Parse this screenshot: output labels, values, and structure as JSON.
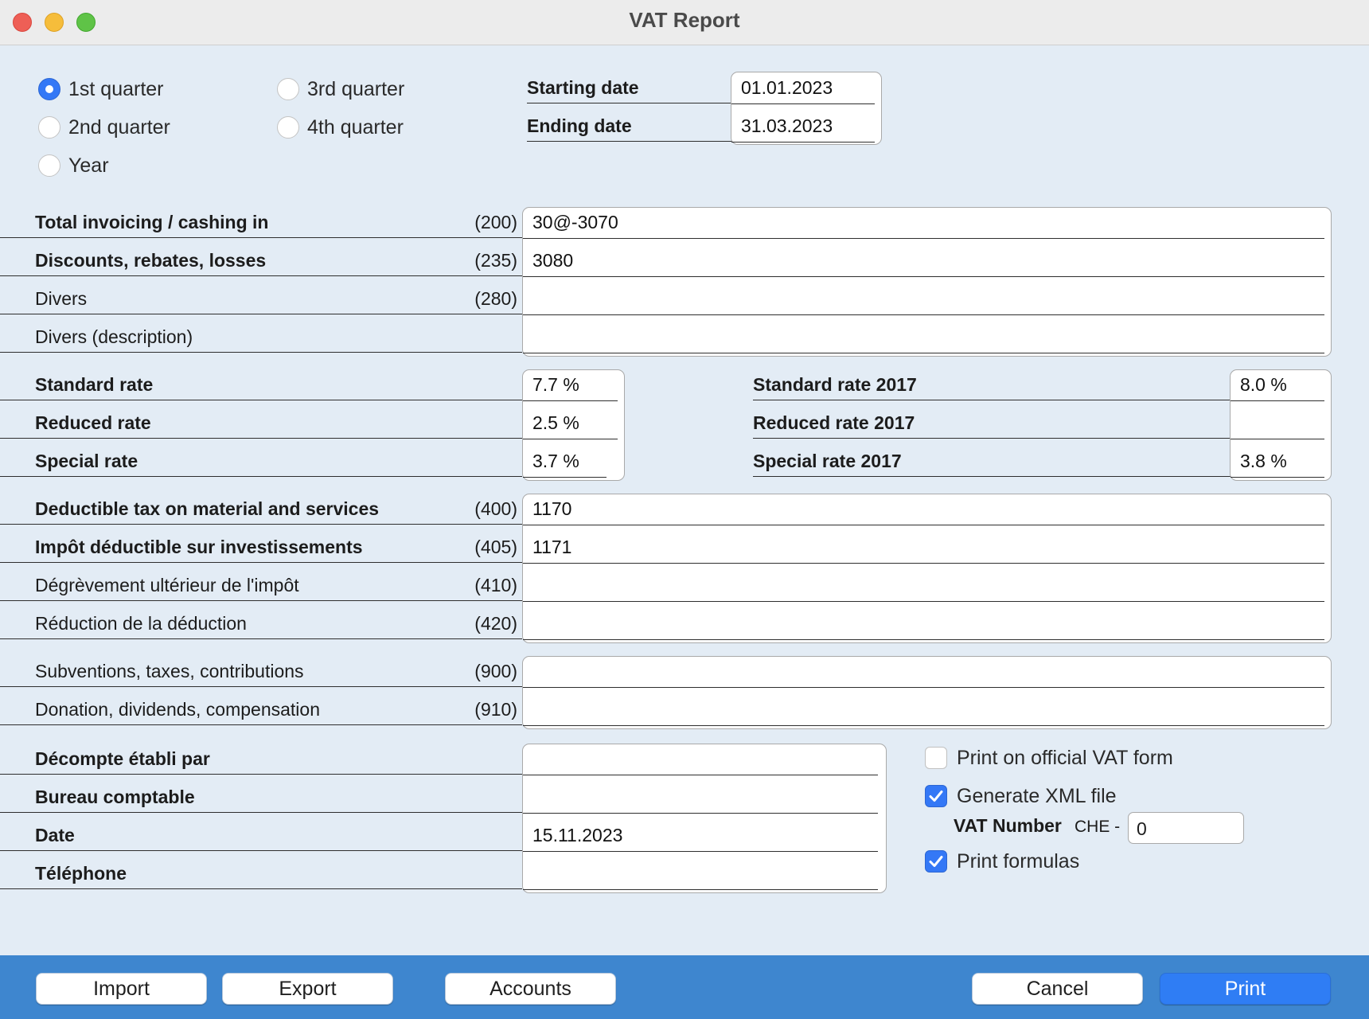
{
  "window": {
    "title": "VAT Report"
  },
  "period": {
    "options": [
      {
        "label": "1st quarter",
        "selected": true
      },
      {
        "label": "2nd quarter",
        "selected": false
      },
      {
        "label": "Year",
        "selected": false
      },
      {
        "label": "3rd quarter",
        "selected": false
      },
      {
        "label": "4th quarter",
        "selected": false
      }
    ],
    "starting_date_label": "Starting date",
    "starting_date": "01.01.2023",
    "ending_date_label": "Ending date",
    "ending_date": "31.03.2023"
  },
  "turnover": [
    {
      "label": "Total invoicing / cashing in",
      "code": "(200)",
      "value": "30@-3070"
    },
    {
      "label": "Discounts, rebates, losses",
      "code": "(235)",
      "value": "3080"
    },
    {
      "label": "Divers",
      "code": "(280)",
      "value": ""
    },
    {
      "label": "Divers (description)",
      "code": "",
      "value": ""
    }
  ],
  "rates": [
    {
      "label": "Standard rate",
      "value": "7.7 %"
    },
    {
      "label": "Reduced rate",
      "value": "2.5 %"
    },
    {
      "label": "Special rate",
      "value": "3.7 %"
    }
  ],
  "rates_2017": [
    {
      "label": "Standard rate 2017",
      "value": "8.0 %"
    },
    {
      "label": "Reduced rate 2017",
      "value": ""
    },
    {
      "label": "Special rate 2017",
      "value": "3.8 %"
    }
  ],
  "deductions": [
    {
      "label": "Deductible tax on material and services",
      "code": "(400)",
      "value": "1170"
    },
    {
      "label": "Impôt déductible sur investissements",
      "code": "(405)",
      "value": "1171"
    },
    {
      "label": "Dégrèvement ultérieur de l'impôt",
      "code": "(410)",
      "value": ""
    },
    {
      "label": "Réduction de la déduction",
      "code": "(420)",
      "value": ""
    }
  ],
  "other": [
    {
      "label": "Subventions, taxes, contributions",
      "code": "(900)",
      "value": ""
    },
    {
      "label": "Donation, dividends, compensation",
      "code": "(910)",
      "value": ""
    }
  ],
  "footer_fields": [
    {
      "label": "Décompte établi par",
      "value": ""
    },
    {
      "label": "Bureau comptable",
      "value": ""
    },
    {
      "label": "Date",
      "value": "15.11.2023"
    },
    {
      "label": "Téléphone",
      "value": ""
    }
  ],
  "options": {
    "print_official": {
      "label": "Print on official VAT form",
      "checked": false
    },
    "generate_xml": {
      "label": "Generate XML file",
      "checked": true
    },
    "vat_number_label": "VAT Number",
    "vat_prefix": "CHE -",
    "vat_number": "0",
    "print_formulas": {
      "label": "Print formulas",
      "checked": true
    }
  },
  "buttons": {
    "import": "Import",
    "export": "Export",
    "accounts": "Accounts",
    "cancel": "Cancel",
    "print": "Print"
  },
  "colors": {
    "accent": "#3478f6",
    "background": "#e3ecf5",
    "bottom_bar": "#3e86cf"
  }
}
